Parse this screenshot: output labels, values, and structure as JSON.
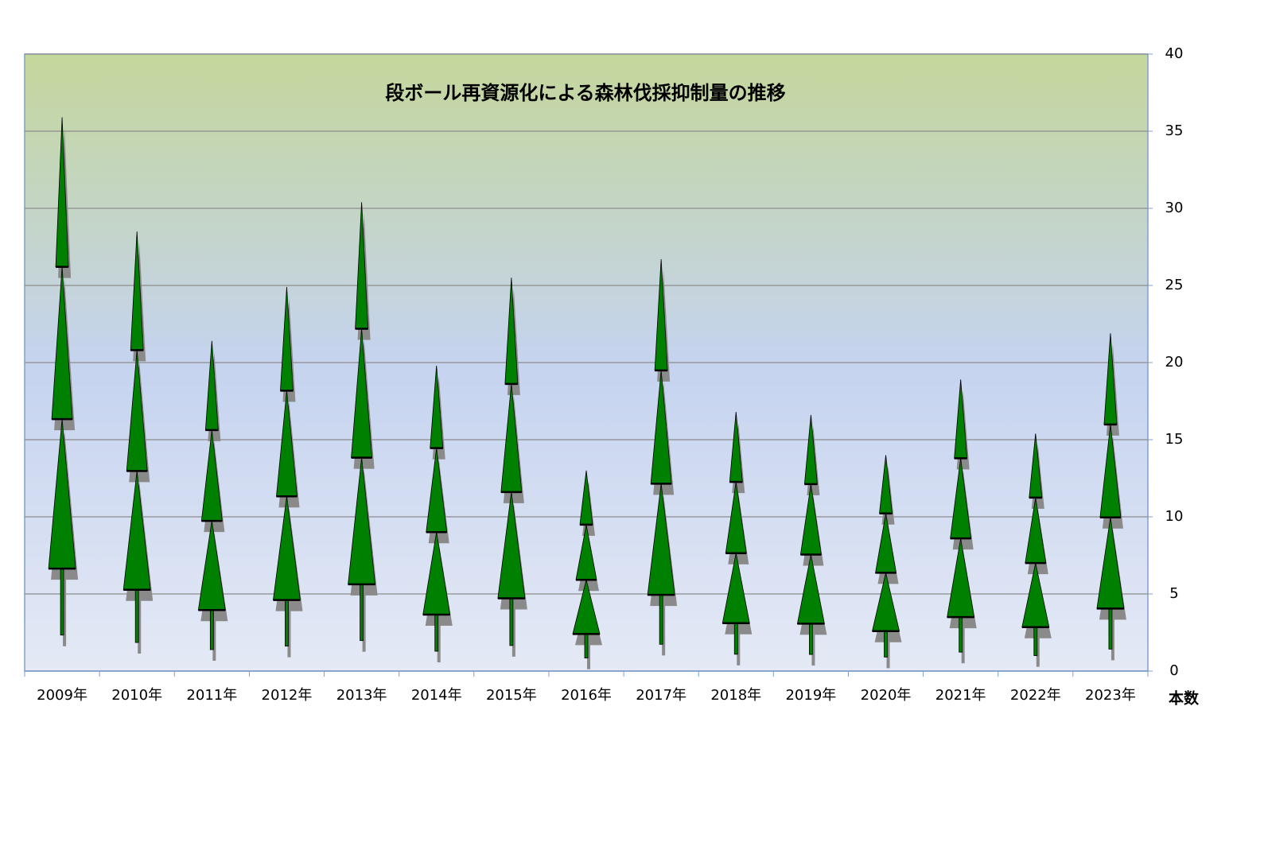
{
  "chart_data": {
    "type": "tree-pictograph",
    "title": "段ボール再資源化による森林伐採抑制量の推移",
    "y_label": "本数",
    "categories": [
      "2009年",
      "2010年",
      "2011年",
      "2012年",
      "2013年",
      "2014年",
      "2015年",
      "2016年",
      "2017年",
      "2018年",
      "2019年",
      "2020年",
      "2021年",
      "2022年",
      "2023年"
    ],
    "values": [
      35.9,
      28.5,
      21.4,
      24.9,
      30.4,
      19.8,
      25.5,
      13.0,
      26.7,
      16.8,
      16.6,
      14.0,
      18.9,
      15.4,
      21.9
    ],
    "color": "#008000",
    "ylim": [
      0,
      40
    ],
    "yticks": [
      0,
      5,
      10,
      15,
      20,
      25,
      30,
      35,
      40
    ],
    "grid": true
  }
}
